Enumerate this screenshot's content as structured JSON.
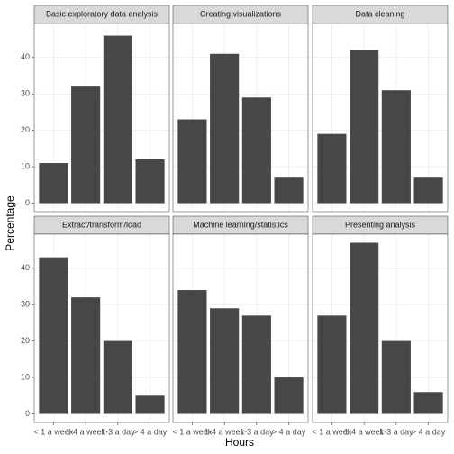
{
  "chart_data": {
    "type": "bar",
    "xlabel": "Hours",
    "ylabel": "Percentage",
    "categories": [
      "< 1 a week",
      "1-4 a week",
      "1-3 a day",
      "> 4 a day"
    ],
    "ylim": [
      -2.35,
      49.35
    ],
    "yticks": [
      0,
      10,
      20,
      30,
      40
    ],
    "grid": true,
    "color": "#474747",
    "panels": [
      {
        "title": "Basic exploratory data analysis",
        "values": [
          11,
          32,
          46,
          12
        ]
      },
      {
        "title": "Creating visualizations",
        "values": [
          23,
          41,
          29,
          7
        ]
      },
      {
        "title": "Data cleaning",
        "values": [
          19,
          42,
          31,
          7
        ]
      },
      {
        "title": "Extract/transform/load",
        "values": [
          43,
          32,
          20,
          5
        ]
      },
      {
        "title": "Machine learning/statistics",
        "values": [
          34,
          29,
          27,
          10
        ]
      },
      {
        "title": "Presenting analysis",
        "values": [
          27,
          47,
          20,
          6
        ]
      }
    ]
  }
}
